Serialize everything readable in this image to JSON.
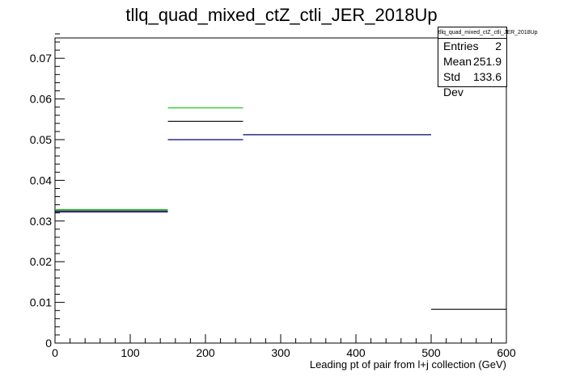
{
  "chart_data": {
    "type": "histogram",
    "title": "tllq_quad_mixed_ctZ_ctli_JER_2018Up",
    "xlabel": "Leading pt of pair from l+j collection (GeV)",
    "ylabel": "",
    "xlim": [
      0,
      600
    ],
    "ylim": [
      0,
      0.075
    ],
    "x_ticks": [
      0,
      100,
      200,
      300,
      400,
      500,
      600
    ],
    "y_ticks": [
      0,
      0.01,
      0.02,
      0.03,
      0.04,
      0.05,
      0.06,
      0.07
    ],
    "x_tick_labels": [
      "0",
      "100",
      "200",
      "300",
      "400",
      "500",
      "600"
    ],
    "y_tick_labels": [
      "0",
      "0.01",
      "0.02",
      "0.03",
      "0.04",
      "0.05",
      "0.06",
      "0.07"
    ],
    "bin_edges": [
      0,
      150,
      250,
      500,
      600
    ],
    "series": [
      {
        "color": "#000000",
        "values": [
          0.0325,
          0.0545,
          0.0512,
          0.0083
        ]
      },
      {
        "color": "#00cc00",
        "values": [
          0.0328,
          0.0578,
          0.0512,
          0
        ]
      },
      {
        "color": "#000080",
        "values": [
          0.0322,
          0.05,
          0.0512,
          0
        ]
      }
    ],
    "stats": {
      "name": "tllq_quad_mixed_ctZ_ctli_JER_2018Up",
      "rows": [
        {
          "label": "Entries",
          "value": "2"
        },
        {
          "label": "Mean",
          "value": "251.9"
        },
        {
          "label": "Std Dev",
          "value": "133.6"
        }
      ]
    }
  }
}
